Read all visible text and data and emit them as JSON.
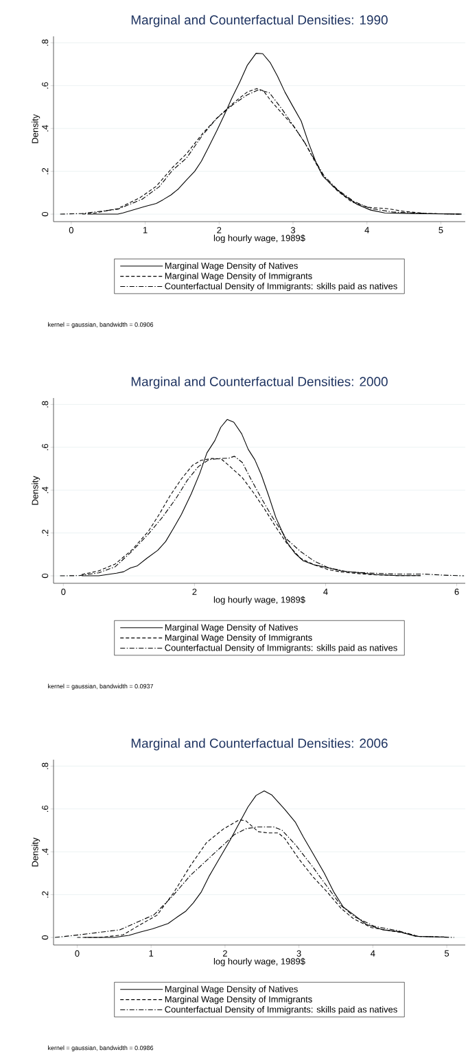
{
  "chart_data": [
    {
      "type": "line",
      "title": "Marginal and Counterfactual Densities: 1990",
      "xlabel": "log hourly wage, 1989$",
      "ylabel": "Density",
      "xlim": [
        -0.24,
        5.33
      ],
      "ylim": [
        -0.035,
        0.83
      ],
      "xticks": [
        0,
        1,
        2,
        3,
        4,
        5
      ],
      "yticks": [
        0,
        {
          "value": 0.2,
          "label": ".2"
        },
        {
          "value": 0.4,
          "label": ".4"
        },
        {
          "value": 0.6,
          "label": ".6"
        },
        {
          "value": 0.8,
          "label": ".8"
        }
      ],
      "grid": "y",
      "legend": "bottom",
      "annotations": [
        "kernel = gaussian, bandwidth = 0.0906"
      ],
      "series": [
        {
          "name": "Marginal Wage Density of Natives",
          "color": "#000000",
          "line_style": "solid",
          "x": [
            0.22,
            0.63,
            0.7,
            1.0,
            1.15,
            1.24,
            1.35,
            1.45,
            1.56,
            1.67,
            1.76,
            1.86,
            1.97,
            2.08,
            2.17,
            2.28,
            2.38,
            2.5,
            2.59,
            2.69,
            2.79,
            2.89,
            3.0,
            3.11,
            3.21,
            3.31,
            3.4,
            3.53,
            3.68,
            3.87,
            4.05,
            4.24,
            4.61,
            5.28
          ],
          "values": [
            0,
            0,
            0.006,
            0.036,
            0.05,
            0.067,
            0.09,
            0.118,
            0.16,
            0.2,
            0.247,
            0.314,
            0.39,
            0.47,
            0.54,
            0.617,
            0.694,
            0.751,
            0.749,
            0.708,
            0.644,
            0.57,
            0.502,
            0.435,
            0.333,
            0.243,
            0.179,
            0.134,
            0.09,
            0.045,
            0.019,
            0.006,
            0.003,
            0
          ]
        },
        {
          "name": "Marginal Wage Density of Immigrants",
          "color": "#000000",
          "line_style": "dashed",
          "x": [
            0.15,
            0.33,
            0.63,
            0.93,
            1.15,
            1.37,
            1.56,
            1.78,
            1.97,
            2.19,
            2.38,
            2.51,
            2.6,
            2.71,
            2.86,
            3.01,
            3.16,
            3.31,
            3.42,
            3.6,
            3.79,
            4.01,
            4.27,
            4.5,
            4.8,
            5.28
          ],
          "values": [
            0,
            0.006,
            0.026,
            0.077,
            0.13,
            0.218,
            0.282,
            0.378,
            0.448,
            0.518,
            0.57,
            0.586,
            0.576,
            0.525,
            0.467,
            0.41,
            0.333,
            0.237,
            0.173,
            0.109,
            0.058,
            0.032,
            0.026,
            0.013,
            0.003,
            0
          ]
        },
        {
          "name": "Counterfactual Density of Immigrants: skills paid as natives",
          "color": "#000000",
          "line_style": "dashdot",
          "x": [
            -0.15,
            0.15,
            0.63,
            0.96,
            1.19,
            1.37,
            1.56,
            1.78,
            1.97,
            2.19,
            2.38,
            2.53,
            2.68,
            2.86,
            3.01,
            3.16,
            3.31,
            3.42,
            3.6,
            3.83,
            4.05,
            4.35,
            4.8,
            5.28
          ],
          "values": [
            0,
            0.003,
            0.023,
            0.07,
            0.128,
            0.205,
            0.262,
            0.371,
            0.448,
            0.512,
            0.557,
            0.58,
            0.567,
            0.486,
            0.41,
            0.333,
            0.243,
            0.179,
            0.115,
            0.058,
            0.026,
            0.01,
            0.003,
            0
          ]
        }
      ]
    },
    {
      "type": "line",
      "title": "Marginal and Counterfactual Densities: 2000",
      "xlabel": "log hourly wage, 1989$",
      "ylabel": "Density",
      "xlim": [
        -0.15,
        6.13
      ],
      "ylim": [
        -0.035,
        0.83
      ],
      "xticks": [
        0,
        2,
        4,
        6
      ],
      "yticks": [
        0,
        {
          "value": 0.2,
          "label": ".2"
        },
        {
          "value": 0.4,
          "label": ".4"
        },
        {
          "value": 0.6,
          "label": ".6"
        },
        {
          "value": 0.8,
          "label": ".8"
        }
      ],
      "grid": "y",
      "legend": "bottom",
      "annotations": [
        "kernel = gaussian, bandwidth = 0.0937"
      ],
      "series": [
        {
          "name": "Marginal Wage Density of Natives",
          "color": "#000000",
          "line_style": "solid",
          "x": [
            0.28,
            0.54,
            0.81,
            0.92,
            1.02,
            1.13,
            1.27,
            1.44,
            1.56,
            1.68,
            1.8,
            1.95,
            2.08,
            2.19,
            2.31,
            2.4,
            2.5,
            2.6,
            2.72,
            2.82,
            2.92,
            3.02,
            3.13,
            3.24,
            3.41,
            3.53,
            3.66,
            3.83,
            4.0,
            4.25,
            4.54,
            4.76,
            5.09,
            5.45
          ],
          "values": [
            0,
            0,
            0.012,
            0.019,
            0.036,
            0.047,
            0.081,
            0.119,
            0.16,
            0.222,
            0.286,
            0.382,
            0.478,
            0.574,
            0.631,
            0.693,
            0.73,
            0.717,
            0.663,
            0.59,
            0.542,
            0.471,
            0.375,
            0.273,
            0.157,
            0.106,
            0.07,
            0.051,
            0.04,
            0.022,
            0.014,
            0.006,
            0.001,
            0.001
          ]
        },
        {
          "name": "Marginal Wage Density of Immigrants",
          "color": "#000000",
          "line_style": "dashed",
          "x": [
            0.28,
            0.54,
            0.79,
            1.04,
            1.3,
            1.46,
            1.63,
            1.8,
            1.97,
            2.1,
            2.27,
            2.41,
            2.52,
            2.73,
            2.9,
            3.07,
            3.24,
            3.41,
            3.62,
            3.83,
            4.04,
            4.25,
            4.67,
            5.09,
            5.45
          ],
          "values": [
            0.006,
            0.023,
            0.055,
            0.119,
            0.209,
            0.286,
            0.375,
            0.452,
            0.516,
            0.539,
            0.548,
            0.545,
            0.516,
            0.458,
            0.388,
            0.311,
            0.228,
            0.151,
            0.081,
            0.051,
            0.029,
            0.017,
            0.006,
            0.001,
            0.001
          ]
        },
        {
          "name": "Counterfactual Density of Immigrants: skills paid as natives",
          "color": "#000000",
          "line_style": "dashdot",
          "x": [
            -0.05,
            0.24,
            0.54,
            0.79,
            1.04,
            1.3,
            1.51,
            1.72,
            1.89,
            2.06,
            2.22,
            2.39,
            2.52,
            2.61,
            2.73,
            2.86,
            3.02,
            3.19,
            3.41,
            3.62,
            3.83,
            4.04,
            4.33,
            4.67,
            5.09,
            5.51,
            5.81,
            6.11
          ],
          "values": [
            0,
            0.001,
            0.014,
            0.042,
            0.113,
            0.196,
            0.273,
            0.362,
            0.446,
            0.51,
            0.542,
            0.548,
            0.549,
            0.558,
            0.529,
            0.452,
            0.362,
            0.273,
            0.17,
            0.113,
            0.068,
            0.038,
            0.019,
            0.013,
            0.008,
            0.008,
            0.003,
            0
          ]
        }
      ]
    },
    {
      "type": "line",
      "title": "Marginal and Counterfactual Densities: 2006",
      "xlabel": "log hourly wage, 1989$",
      "ylabel": "Density",
      "xlim": [
        -0.32,
        5.25
      ],
      "ylim": [
        -0.035,
        0.83
      ],
      "xticks": [
        0,
        1,
        2,
        3,
        4,
        5
      ],
      "yticks": [
        0,
        {
          "value": 0.2,
          "label": ".2"
        },
        {
          "value": 0.4,
          "label": ".4"
        },
        {
          "value": 0.6,
          "label": ".6"
        },
        {
          "value": 0.8,
          "label": ".8"
        }
      ],
      "grid": "y",
      "legend": "bottom",
      "annotations": [
        "kernel = gaussian, bandwidth = 0.0986"
      ],
      "series": [
        {
          "name": "Marginal Wage Density of Natives",
          "color": "#000000",
          "line_style": "solid",
          "x": [
            0.1,
            0.5,
            0.7,
            0.85,
            1.02,
            1.23,
            1.36,
            1.47,
            1.57,
            1.68,
            1.79,
            1.92,
            2.06,
            2.21,
            2.31,
            2.42,
            2.53,
            2.63,
            2.81,
            2.95,
            3.06,
            3.19,
            3.34,
            3.47,
            3.6,
            3.75,
            3.91,
            4.13,
            4.36,
            4.58,
            5.0
          ],
          "values": [
            0,
            0,
            0.01,
            0.025,
            0.04,
            0.065,
            0.097,
            0.123,
            0.161,
            0.213,
            0.289,
            0.366,
            0.449,
            0.545,
            0.609,
            0.663,
            0.684,
            0.666,
            0.597,
            0.539,
            0.469,
            0.392,
            0.302,
            0.213,
            0.142,
            0.104,
            0.061,
            0.036,
            0.027,
            0.005,
            0.002
          ]
        },
        {
          "name": "Marginal Wage Density of Immigrants",
          "color": "#000000",
          "line_style": "dashed",
          "x": [
            0.0,
            0.3,
            0.62,
            0.85,
            1.08,
            1.3,
            1.53,
            1.75,
            1.98,
            2.19,
            2.28,
            2.45,
            2.58,
            2.72,
            2.81,
            3.0,
            3.19,
            3.38,
            3.57,
            3.74,
            3.98,
            4.21,
            4.43,
            4.62,
            5.0
          ],
          "values": [
            0,
            0,
            0.012,
            0.059,
            0.104,
            0.206,
            0.334,
            0.443,
            0.507,
            0.549,
            0.545,
            0.494,
            0.488,
            0.488,
            0.462,
            0.366,
            0.283,
            0.213,
            0.136,
            0.087,
            0.046,
            0.033,
            0.02,
            0.005,
            0.002
          ]
        },
        {
          "name": "Counterfactual Density of Immigrants: skills paid as natives",
          "color": "#000000",
          "line_style": "dashdot",
          "x": [
            -0.3,
            0.02,
            0.28,
            0.58,
            0.77,
            1.04,
            1.3,
            1.53,
            1.83,
            2.13,
            2.28,
            2.43,
            2.66,
            2.77,
            2.96,
            3.19,
            3.38,
            3.57,
            3.75,
            4.02,
            4.32,
            4.62,
            5.1
          ],
          "values": [
            0,
            0.012,
            0.023,
            0.036,
            0.065,
            0.106,
            0.197,
            0.289,
            0.385,
            0.481,
            0.507,
            0.516,
            0.516,
            0.501,
            0.43,
            0.328,
            0.238,
            0.149,
            0.097,
            0.052,
            0.033,
            0.005,
            0
          ]
        }
      ]
    }
  ]
}
